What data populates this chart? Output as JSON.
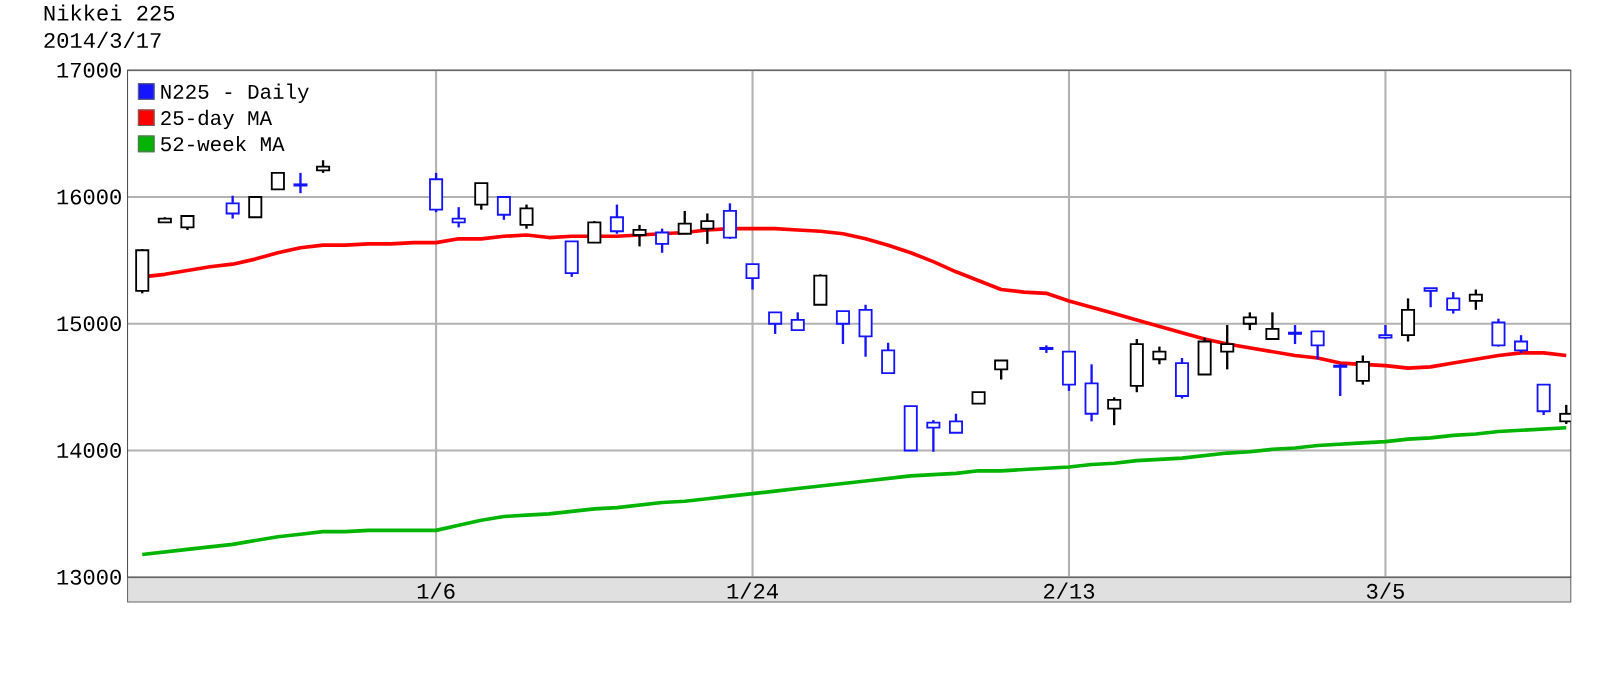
{
  "chart_data": {
    "type": "candlestick",
    "title": "Nikkei 225",
    "subtitle": "2014/3/17",
    "categories": [
      null,
      null,
      null,
      null,
      null,
      null,
      null,
      null,
      null,
      null,
      null,
      null,
      null,
      "1/6",
      null,
      null,
      null,
      null,
      null,
      null,
      null,
      null,
      null,
      null,
      null,
      null,
      null,
      "1/24",
      null,
      null,
      null,
      null,
      null,
      null,
      null,
      null,
      null,
      null,
      null,
      null,
      null,
      "2/13",
      null,
      null,
      null,
      null,
      null,
      null,
      null,
      null,
      null,
      null,
      null,
      null,
      null,
      "3/5",
      null,
      null,
      null,
      null,
      null,
      null,
      null,
      null
    ],
    "ylim": [
      13000,
      17000
    ],
    "yticks": [
      13000,
      14000,
      15000,
      16000,
      17000
    ],
    "grid": true,
    "legend": "top left",
    "series": [
      {
        "name": "N225 - Daily",
        "type": "candlestick",
        "color": "#1414ff",
        "ohlc": [
          [
            15260,
            15590,
            15240,
            15580
          ],
          [
            15800,
            15840,
            15800,
            15830
          ],
          [
            15760,
            15850,
            15740,
            15850
          ],
          null,
          [
            15950,
            16010,
            15830,
            15870
          ],
          [
            15840,
            16000,
            15840,
            16000
          ],
          [
            16060,
            16190,
            16060,
            16190
          ],
          [
            16100,
            16190,
            16030,
            16090
          ],
          [
            16210,
            16290,
            16190,
            16240
          ],
          null,
          null,
          null,
          null,
          [
            16140,
            16190,
            15880,
            15900
          ],
          [
            15830,
            15920,
            15760,
            15800
          ],
          [
            15940,
            16110,
            15900,
            16110
          ],
          [
            16000,
            16000,
            15820,
            15860
          ],
          [
            15780,
            15940,
            15750,
            15910
          ],
          null,
          [
            15650,
            15650,
            15370,
            15400
          ],
          [
            15640,
            15810,
            15640,
            15800
          ],
          [
            15840,
            15940,
            15710,
            15730
          ],
          [
            15700,
            15780,
            15610,
            15740
          ],
          [
            15720,
            15750,
            15560,
            15630
          ],
          [
            15710,
            15890,
            15710,
            15790
          ],
          [
            15750,
            15870,
            15630,
            15810
          ],
          [
            15890,
            15950,
            15670,
            15680
          ],
          [
            15470,
            15470,
            15270,
            15360
          ],
          [
            15090,
            15090,
            14920,
            15000
          ],
          [
            15030,
            15090,
            14950,
            14950
          ],
          [
            15150,
            15390,
            15150,
            15380
          ],
          [
            15100,
            15100,
            14840,
            15000
          ],
          [
            15110,
            15150,
            14740,
            14900
          ],
          [
            14790,
            14850,
            14610,
            14610
          ],
          [
            14350,
            14350,
            14000,
            14000
          ],
          [
            14220,
            14240,
            13990,
            14180
          ],
          [
            14230,
            14290,
            14140,
            14140
          ],
          [
            14370,
            14460,
            14370,
            14460
          ],
          [
            14640,
            14710,
            14560,
            14710
          ],
          null,
          [
            14810,
            14830,
            14770,
            14800
          ],
          [
            14780,
            14780,
            14470,
            14520
          ],
          [
            14530,
            14680,
            14230,
            14290
          ],
          [
            14330,
            14420,
            14200,
            14400
          ],
          [
            14510,
            14880,
            14460,
            14840
          ],
          [
            14720,
            14820,
            14680,
            14780
          ],
          [
            14690,
            14730,
            14410,
            14430
          ],
          [
            14600,
            14890,
            14600,
            14860
          ],
          [
            14780,
            14990,
            14640,
            14840
          ],
          [
            15000,
            15090,
            14950,
            15050
          ],
          [
            14880,
            15090,
            14880,
            14960
          ],
          [
            14930,
            14990,
            14840,
            14920
          ],
          [
            14940,
            14940,
            14720,
            14830
          ],
          [
            14670,
            14680,
            14430,
            14660
          ],
          [
            14550,
            14750,
            14520,
            14700
          ],
          [
            14910,
            14990,
            14880,
            14890
          ],
          [
            14910,
            15200,
            14860,
            15110
          ],
          [
            15280,
            15280,
            15130,
            15260
          ],
          [
            15200,
            15250,
            15080,
            15110
          ],
          [
            15180,
            15270,
            15110,
            15230
          ],
          [
            15010,
            15040,
            14820,
            14830
          ],
          [
            14860,
            14910,
            14770,
            14790
          ],
          [
            14520,
            14520,
            14280,
            14310
          ],
          [
            14230,
            14360,
            14210,
            14290
          ]
        ],
        "colors": [
          "#ffffff",
          "#ffffff",
          "#ffffff",
          null,
          "#1414ff",
          "#ffffff",
          "#ffffff",
          "#1414ff",
          "#ffffff",
          null,
          null,
          null,
          null,
          "#1414ff",
          "#1414ff",
          "#ffffff",
          "#1414ff",
          "#ffffff",
          null,
          "#1414ff",
          "#ffffff",
          "#1414ff",
          "#ffffff",
          "#1414ff",
          "#ffffff",
          "#ffffff",
          "#1414ff",
          "#1414ff",
          "#1414ff",
          "#1414ff",
          "#ffffff",
          "#1414ff",
          "#1414ff",
          "#1414ff",
          "#1414ff",
          "#1414ff",
          "#1414ff",
          "#ffffff",
          "#ffffff",
          null,
          "#1414ff",
          "#1414ff",
          "#1414ff",
          "#ffffff",
          "#ffffff",
          "#ffffff",
          "#1414ff",
          "#ffffff",
          "#ffffff",
          "#ffffff",
          "#ffffff",
          "#1414ff",
          "#1414ff",
          "#1414ff",
          "#ffffff",
          "#1414ff",
          "#ffffff",
          "#1414ff",
          "#1414ff",
          "#ffffff",
          "#1414ff",
          "#1414ff",
          "#1414ff",
          "#ffffff"
        ]
      },
      {
        "name": "25-day MA",
        "type": "line",
        "color": "#ff0000",
        "values": [
          15370,
          15390,
          15420,
          15450,
          15470,
          15510,
          15560,
          15600,
          15620,
          15620,
          15630,
          15630,
          15640,
          15640,
          15670,
          15670,
          15690,
          15700,
          15680,
          15690,
          15690,
          15690,
          15700,
          15710,
          15720,
          15740,
          15750,
          15750,
          15750,
          15740,
          15730,
          15710,
          15670,
          15620,
          15560,
          15490,
          15410,
          15340,
          15270,
          15250,
          15240,
          15180,
          15130,
          15080,
          15030,
          14980,
          14930,
          14880,
          14840,
          14810,
          14780,
          14750,
          14730,
          14690,
          14680,
          14670,
          14650,
          14660,
          14690,
          14720,
          14750,
          14770,
          14770,
          14750
        ]
      },
      {
        "name": "52-week MA",
        "type": "line",
        "color": "#00b400",
        "values": [
          13180,
          13200,
          13220,
          13240,
          13260,
          13290,
          13320,
          13340,
          13360,
          13360,
          13370,
          13370,
          13370,
          13370,
          13410,
          13450,
          13480,
          13490,
          13500,
          13520,
          13540,
          13550,
          13570,
          13590,
          13600,
          13620,
          13640,
          13660,
          13680,
          13700,
          13720,
          13740,
          13760,
          13780,
          13800,
          13810,
          13820,
          13840,
          13840,
          13850,
          13860,
          13870,
          13890,
          13900,
          13920,
          13930,
          13940,
          13960,
          13980,
          13990,
          14010,
          14020,
          14040,
          14050,
          14060,
          14070,
          14090,
          14100,
          14120,
          14130,
          14150,
          14160,
          14170,
          14180
        ]
      }
    ]
  }
}
